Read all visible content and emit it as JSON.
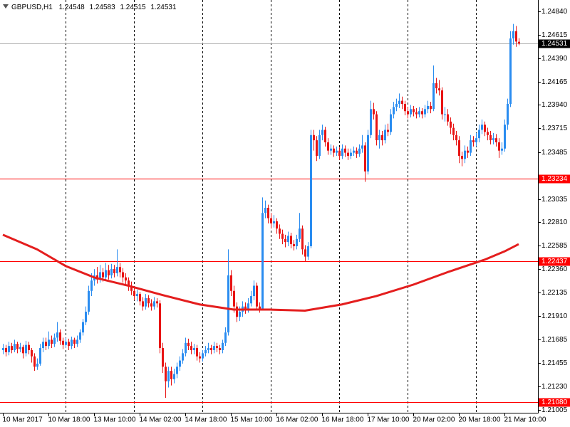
{
  "chart_data": {
    "type": "candlestick",
    "symbol": "GBPUSD,H1",
    "ylim": [
      1.20977,
      1.2495
    ],
    "yticks": [
      {
        "value": 1.2484,
        "label": "1.24840"
      },
      1.24615,
      {
        "value": 1.2439,
        "label": "1.24390"
      },
      1.24165,
      {
        "value": 1.2394,
        "label": "1.23940"
      },
      1.23715,
      1.23485,
      1.23035,
      {
        "value": 1.2281,
        "label": "1.22810"
      },
      1.22585,
      {
        "value": 1.2236,
        "label": "1.22360"
      },
      1.22135,
      {
        "value": 1.2191,
        "label": "1.21910"
      },
      1.21685,
      1.21455,
      {
        "value": 1.2123,
        "label": "1.21230"
      },
      1.21005
    ],
    "up_color": "#2a8cf0",
    "down_color": "#e81414",
    "categories": [
      "10 Mar 2017",
      null,
      null,
      null,
      null,
      null,
      null,
      null,
      null,
      null,
      null,
      null,
      null,
      null,
      null,
      null,
      "10 Mar 18:00",
      null,
      null,
      null,
      null,
      null,
      null,
      null,
      null,
      null,
      null,
      null,
      null,
      null,
      null,
      null,
      "13 Mar 10:00",
      null,
      null,
      null,
      null,
      null,
      null,
      null,
      null,
      null,
      null,
      null,
      null,
      null,
      null,
      null,
      "14 Mar 02:00",
      null,
      null,
      null,
      null,
      null,
      null,
      null,
      null,
      null,
      null,
      null,
      null,
      null,
      null,
      null,
      "14 Mar 18:00",
      null,
      null,
      null,
      null,
      null,
      null,
      null,
      null,
      null,
      null,
      null,
      null,
      null,
      null,
      null,
      "15 Mar 10:00",
      null,
      null,
      null,
      null,
      null,
      null,
      null,
      null,
      null,
      null,
      null,
      null,
      null,
      null,
      null,
      "16 Mar 02:00",
      null,
      null,
      null,
      null,
      null,
      null,
      null,
      null,
      null,
      null,
      null,
      null,
      null,
      null,
      null,
      "16 Mar 18:00",
      null,
      null,
      null,
      null,
      null,
      null,
      null,
      null,
      null,
      null,
      null,
      null,
      null,
      null,
      null,
      "17 Mar 10:00",
      null,
      null,
      null,
      null,
      null,
      null,
      null,
      null,
      null,
      null,
      null,
      null,
      null,
      null,
      null,
      "20 Mar 02:00",
      null,
      null,
      null,
      null,
      null,
      null,
      null,
      null,
      null,
      null,
      null,
      null,
      null,
      null,
      null,
      "20 Mar 18:00",
      null,
      null,
      null,
      null,
      null,
      null,
      null,
      null,
      null,
      null,
      null,
      null,
      null,
      null,
      null,
      "21 Mar 10:00",
      null,
      null,
      null,
      null,
      null
    ],
    "candles": [
      [
        1.2158,
        1.2164,
        1.2154,
        1.216
      ],
      [
        1.216,
        1.2163,
        1.2152,
        1.2156
      ],
      [
        1.2156,
        1.2166,
        1.2153,
        1.2162
      ],
      [
        1.2162,
        1.2165,
        1.2155,
        1.2158
      ],
      [
        1.2158,
        1.2168,
        1.2156,
        1.2164
      ],
      [
        1.2164,
        1.2166,
        1.2155,
        1.2159
      ],
      [
        1.2159,
        1.2165,
        1.2156,
        1.2161
      ],
      [
        1.2161,
        1.2163,
        1.215,
        1.2155
      ],
      [
        1.2155,
        1.2167,
        1.2152,
        1.2163
      ],
      [
        1.2163,
        1.2166,
        1.2154,
        1.2158
      ],
      [
        1.2158,
        1.216,
        1.2146,
        1.2152
      ],
      [
        1.2152,
        1.2155,
        1.2138,
        1.2142
      ],
      [
        1.2142,
        1.215,
        1.2139,
        1.2145
      ],
      [
        1.2145,
        1.2164,
        1.2143,
        1.216
      ],
      [
        1.216,
        1.217,
        1.2156,
        1.2166
      ],
      [
        1.2166,
        1.217,
        1.2158,
        1.2162
      ],
      [
        1.2162,
        1.2176,
        1.2159,
        1.2168
      ],
      [
        1.2168,
        1.2172,
        1.216,
        1.2164
      ],
      [
        1.2164,
        1.2174,
        1.2161,
        1.217
      ],
      [
        1.217,
        1.2185,
        1.2166,
        1.2175
      ],
      [
        1.2175,
        1.2178,
        1.2163,
        1.2167
      ],
      [
        1.2167,
        1.217,
        1.2159,
        1.2163
      ],
      [
        1.2163,
        1.217,
        1.216,
        1.2166
      ],
      [
        1.2166,
        1.2169,
        1.2158,
        1.2162
      ],
      [
        1.2162,
        1.2171,
        1.2159,
        1.2168
      ],
      [
        1.2168,
        1.217,
        1.216,
        1.2164
      ],
      [
        1.2164,
        1.2172,
        1.2161,
        1.2168
      ],
      [
        1.2168,
        1.2178,
        1.2165,
        1.2175
      ],
      [
        1.2175,
        1.2188,
        1.2172,
        1.2185
      ],
      [
        1.2185,
        1.22,
        1.2182,
        1.2195
      ],
      [
        1.2195,
        1.222,
        1.2192,
        1.2215
      ],
      [
        1.2215,
        1.2232,
        1.221,
        1.2225
      ],
      [
        1.2225,
        1.2236,
        1.222,
        1.223
      ],
      [
        1.223,
        1.2238,
        1.2222,
        1.2226
      ],
      [
        1.2226,
        1.224,
        1.2223,
        1.2233
      ],
      [
        1.2233,
        1.2237,
        1.2224,
        1.2228
      ],
      [
        1.2228,
        1.2242,
        1.2225,
        1.2235
      ],
      [
        1.2235,
        1.224,
        1.2226,
        1.223
      ],
      [
        1.223,
        1.2241,
        1.2227,
        1.2236
      ],
      [
        1.2236,
        1.224,
        1.2228,
        1.2232
      ],
      [
        1.2232,
        1.2255,
        1.2229,
        1.2238
      ],
      [
        1.2238,
        1.2242,
        1.2228,
        1.2233
      ],
      [
        1.2233,
        1.2237,
        1.2223,
        1.2228
      ],
      [
        1.2228,
        1.2232,
        1.222,
        1.2225
      ],
      [
        1.2225,
        1.2228,
        1.2215,
        1.222
      ],
      [
        1.222,
        1.2224,
        1.2211,
        1.2215
      ],
      [
        1.2215,
        1.2219,
        1.2206,
        1.221
      ],
      [
        1.221,
        1.2216,
        1.2205,
        1.2212
      ],
      [
        1.2212,
        1.2214,
        1.2201,
        1.2205
      ],
      [
        1.2205,
        1.2209,
        1.2196,
        1.22
      ],
      [
        1.22,
        1.2212,
        1.2197,
        1.2208
      ],
      [
        1.2208,
        1.2211,
        1.2199,
        1.2203
      ],
      [
        1.2203,
        1.2207,
        1.2196,
        1.22
      ],
      [
        1.22,
        1.2209,
        1.2197,
        1.2205
      ],
      [
        1.2205,
        1.2208,
        1.2199,
        1.2203
      ],
      [
        1.2203,
        1.2206,
        1.2155,
        1.216
      ],
      [
        1.216,
        1.2165,
        1.2136,
        1.2142
      ],
      [
        1.2142,
        1.2146,
        1.2112,
        1.2128
      ],
      [
        1.2128,
        1.2142,
        1.2122,
        1.2138
      ],
      [
        1.2138,
        1.2142,
        1.2124,
        1.213
      ],
      [
        1.213,
        1.214,
        1.2126,
        1.2135
      ],
      [
        1.2135,
        1.2146,
        1.2131,
        1.2142
      ],
      [
        1.2142,
        1.2152,
        1.2138,
        1.2148
      ],
      [
        1.2148,
        1.2159,
        1.2145,
        1.2155
      ],
      [
        1.2155,
        1.217,
        1.2152,
        1.2165
      ],
      [
        1.2165,
        1.2169,
        1.2158,
        1.2162
      ],
      [
        1.2162,
        1.2166,
        1.2154,
        1.2158
      ],
      [
        1.2158,
        1.2164,
        1.2154,
        1.216
      ],
      [
        1.216,
        1.2163,
        1.2148,
        1.2152
      ],
      [
        1.2152,
        1.2156,
        1.2146,
        1.215
      ],
      [
        1.215,
        1.2158,
        1.2147,
        1.2155
      ],
      [
        1.2155,
        1.2162,
        1.2152,
        1.2158
      ],
      [
        1.2158,
        1.2165,
        1.2155,
        1.216
      ],
      [
        1.216,
        1.2163,
        1.2154,
        1.2158
      ],
      [
        1.2158,
        1.2166,
        1.2155,
        1.2162
      ],
      [
        1.2162,
        1.2165,
        1.2156,
        1.216
      ],
      [
        1.216,
        1.2163,
        1.2154,
        1.2158
      ],
      [
        1.2158,
        1.2168,
        1.2155,
        1.2165
      ],
      [
        1.2165,
        1.218,
        1.2162,
        1.2175
      ],
      [
        1.2175,
        1.2255,
        1.2172,
        1.223
      ],
      [
        1.223,
        1.2235,
        1.221,
        1.2215
      ],
      [
        1.2215,
        1.222,
        1.2194,
        1.22
      ],
      [
        1.22,
        1.2204,
        1.2185,
        1.219
      ],
      [
        1.219,
        1.22,
        1.2186,
        1.2195
      ],
      [
        1.2195,
        1.2205,
        1.219,
        1.22
      ],
      [
        1.22,
        1.2204,
        1.2193,
        1.2198
      ],
      [
        1.2198,
        1.2208,
        1.2194,
        1.2203
      ],
      [
        1.2203,
        1.2215,
        1.22,
        1.221
      ],
      [
        1.221,
        1.2225,
        1.2206,
        1.222
      ],
      [
        1.222,
        1.2223,
        1.2196,
        1.22
      ],
      [
        1.22,
        1.2204,
        1.2194,
        1.2198
      ],
      [
        1.2198,
        1.2305,
        1.2196,
        1.229
      ],
      [
        1.229,
        1.2302,
        1.2285,
        1.2295
      ],
      [
        1.2295,
        1.2298,
        1.228,
        1.2285
      ],
      [
        1.2285,
        1.229,
        1.2275,
        1.228
      ],
      [
        1.228,
        1.2288,
        1.2276,
        1.2282
      ],
      [
        1.2282,
        1.2285,
        1.227,
        1.2275
      ],
      [
        1.2275,
        1.2279,
        1.2265,
        1.227
      ],
      [
        1.227,
        1.2274,
        1.226,
        1.2265
      ],
      [
        1.2265,
        1.2269,
        1.2257,
        1.2262
      ],
      [
        1.2262,
        1.2272,
        1.2258,
        1.2268
      ],
      [
        1.2268,
        1.2271,
        1.2256,
        1.226
      ],
      [
        1.226,
        1.2264,
        1.2254,
        1.2258
      ],
      [
        1.2258,
        1.2269,
        1.2255,
        1.2265
      ],
      [
        1.2265,
        1.229,
        1.2262,
        1.2275
      ],
      [
        1.2275,
        1.2278,
        1.225,
        1.2255
      ],
      [
        1.2255,
        1.2259,
        1.2243,
        1.2248
      ],
      [
        1.2248,
        1.2262,
        1.2245,
        1.2258
      ],
      [
        1.2258,
        1.237,
        1.2256,
        1.2365
      ],
      [
        1.2365,
        1.237,
        1.235,
        1.236
      ],
      [
        1.236,
        1.2364,
        1.234,
        1.2345
      ],
      [
        1.2345,
        1.237,
        1.2342,
        1.2365
      ],
      [
        1.2365,
        1.2375,
        1.236,
        1.237
      ],
      [
        1.237,
        1.2373,
        1.2354,
        1.2358
      ],
      [
        1.2358,
        1.2362,
        1.2346,
        1.235
      ],
      [
        1.235,
        1.2356,
        1.2346,
        1.2352
      ],
      [
        1.2352,
        1.2355,
        1.2344,
        1.2348
      ],
      [
        1.2348,
        1.2354,
        1.2345,
        1.235
      ],
      [
        1.235,
        1.2353,
        1.2341,
        1.2345
      ],
      [
        1.2345,
        1.2356,
        1.2342,
        1.2352
      ],
      [
        1.2352,
        1.2355,
        1.2344,
        1.2348
      ],
      [
        1.2348,
        1.2352,
        1.2341,
        1.2345
      ],
      [
        1.2345,
        1.2352,
        1.2342,
        1.2348
      ],
      [
        1.2348,
        1.2354,
        1.2345,
        1.235
      ],
      [
        1.235,
        1.2353,
        1.2343,
        1.2347
      ],
      [
        1.2347,
        1.2356,
        1.2344,
        1.2352
      ],
      [
        1.2352,
        1.2365,
        1.2348,
        1.2355
      ],
      [
        1.2355,
        1.2358,
        1.232,
        1.233
      ],
      [
        1.233,
        1.237,
        1.2327,
        1.2365
      ],
      [
        1.2365,
        1.2398,
        1.2362,
        1.239
      ],
      [
        1.239,
        1.2396,
        1.238,
        1.2385
      ],
      [
        1.2385,
        1.2388,
        1.2355,
        1.236
      ],
      [
        1.236,
        1.237,
        1.2352,
        1.2365
      ],
      [
        1.2365,
        1.2369,
        1.2355,
        1.236
      ],
      [
        1.236,
        1.2375,
        1.2357,
        1.237
      ],
      [
        1.237,
        1.2376,
        1.2364,
        1.2368
      ],
      [
        1.2368,
        1.239,
        1.2365,
        1.2385
      ],
      [
        1.2385,
        1.2397,
        1.2381,
        1.2392
      ],
      [
        1.2392,
        1.24,
        1.2388,
        1.2395
      ],
      [
        1.2395,
        1.2405,
        1.2391,
        1.2398
      ],
      [
        1.2398,
        1.2402,
        1.239,
        1.2395
      ],
      [
        1.2395,
        1.2398,
        1.2384,
        1.2388
      ],
      [
        1.2388,
        1.2392,
        1.2381,
        1.2385
      ],
      [
        1.2385,
        1.2394,
        1.2382,
        1.239
      ],
      [
        1.239,
        1.2393,
        1.2383,
        1.2387
      ],
      [
        1.2387,
        1.2391,
        1.2381,
        1.2385
      ],
      [
        1.2385,
        1.2392,
        1.2382,
        1.2388
      ],
      [
        1.2388,
        1.2391,
        1.2381,
        1.2385
      ],
      [
        1.2385,
        1.2394,
        1.2382,
        1.239
      ],
      [
        1.239,
        1.2398,
        1.2386,
        1.2393
      ],
      [
        1.2393,
        1.2397,
        1.2386,
        1.239
      ],
      [
        1.239,
        1.2432,
        1.2388,
        1.2415
      ],
      [
        1.2415,
        1.242,
        1.2405,
        1.241
      ],
      [
        1.241,
        1.2418,
        1.2403,
        1.2408
      ],
      [
        1.2408,
        1.2411,
        1.238,
        1.2385
      ],
      [
        1.2385,
        1.2392,
        1.2378,
        1.2385
      ],
      [
        1.2385,
        1.239,
        1.2374,
        1.2378
      ],
      [
        1.2378,
        1.2382,
        1.2366,
        1.2372
      ],
      [
        1.2372,
        1.2376,
        1.236,
        1.2365
      ],
      [
        1.2365,
        1.2369,
        1.2355,
        1.236
      ],
      [
        1.236,
        1.2364,
        1.2338,
        1.2345
      ],
      [
        1.2345,
        1.2349,
        1.2335,
        1.2342
      ],
      [
        1.2342,
        1.2355,
        1.2338,
        1.235
      ],
      [
        1.235,
        1.2354,
        1.2343,
        1.2348
      ],
      [
        1.2348,
        1.2365,
        1.2345,
        1.236
      ],
      [
        1.236,
        1.2364,
        1.2354,
        1.2358
      ],
      [
        1.2358,
        1.2367,
        1.2354,
        1.2362
      ],
      [
        1.2362,
        1.2375,
        1.2358,
        1.237
      ],
      [
        1.237,
        1.238,
        1.2366,
        1.2375
      ],
      [
        1.2375,
        1.2378,
        1.2364,
        1.2368
      ],
      [
        1.2368,
        1.2372,
        1.236,
        1.2365
      ],
      [
        1.2365,
        1.2369,
        1.2356,
        1.236
      ],
      [
        1.236,
        1.2367,
        1.2356,
        1.2362
      ],
      [
        1.2362,
        1.2366,
        1.2354,
        1.2358
      ],
      [
        1.2358,
        1.2362,
        1.2343,
        1.235
      ],
      [
        1.235,
        1.2358,
        1.2346,
        1.2352
      ],
      [
        1.2352,
        1.238,
        1.2349,
        1.2375
      ],
      [
        1.2375,
        1.24,
        1.237,
        1.2395
      ],
      [
        1.2395,
        1.2465,
        1.2392,
        1.2458
      ],
      [
        1.2458,
        1.2472,
        1.2452,
        1.2465
      ],
      [
        1.2465,
        1.247,
        1.245,
        1.2455
      ],
      [
        1.24548,
        1.24583,
        1.24515,
        1.24531
      ]
    ],
    "ma": {
      "color": "#e41e1e",
      "x": [
        0,
        12,
        22,
        32,
        44,
        56,
        69,
        81,
        94,
        106,
        119,
        131,
        144,
        156,
        169,
        176,
        181
      ],
      "values": [
        1.2269,
        1.2255,
        1.2239,
        1.2228,
        1.222,
        1.2211,
        1.2202,
        1.2197,
        1.2197,
        1.2196,
        1.2202,
        1.221,
        1.2221,
        1.2233,
        1.2245,
        1.2253,
        1.226
      ]
    },
    "hlines": {
      "color": "#ff0000",
      "values": [
        1.23234,
        1.22437,
        {
          "value": 1.2108,
          "label": "1.21080"
        }
      ]
    }
  }
}
